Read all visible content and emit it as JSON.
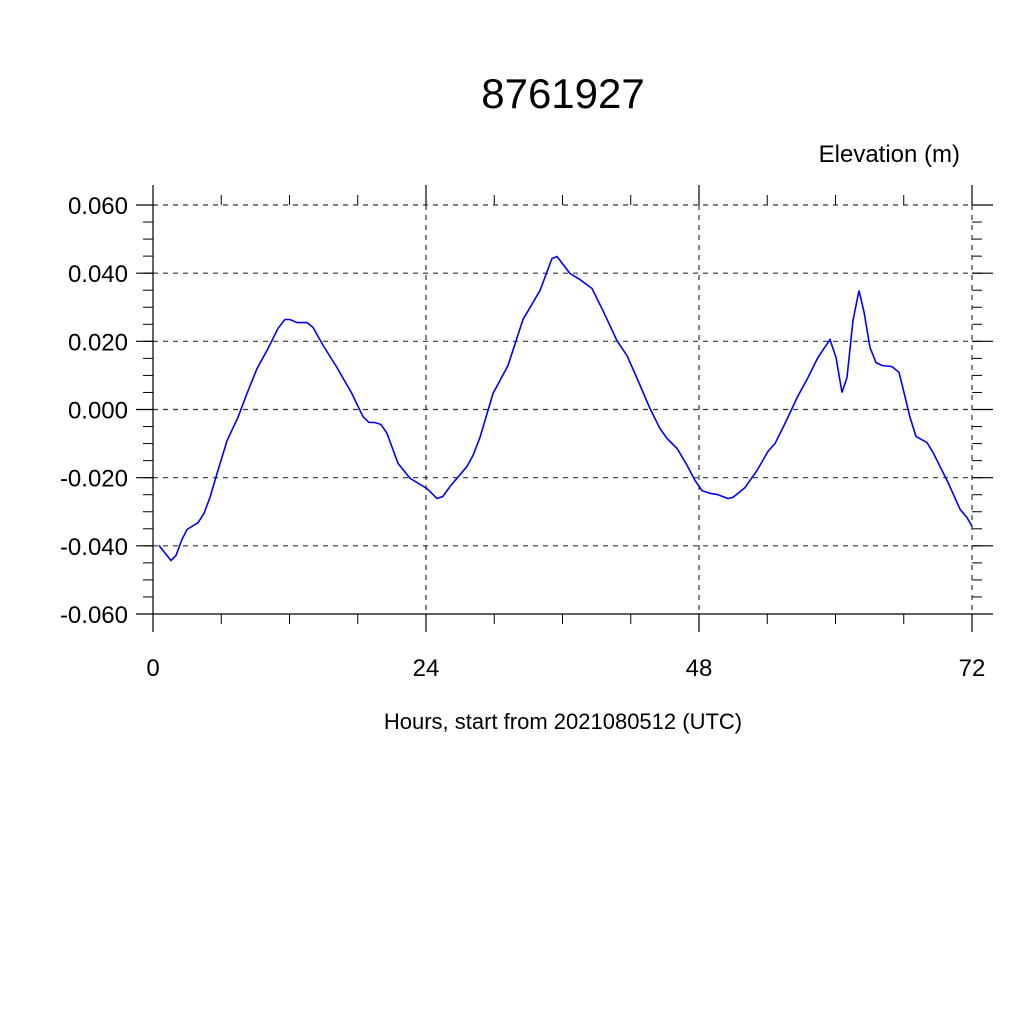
{
  "chart_data": {
    "type": "line",
    "title": "8761927",
    "subtitle": "Elevation (m)",
    "xlabel": "Hours, start from 2021080512 (UTC)",
    "ylabel": "",
    "xlim": [
      0,
      72
    ],
    "ylim": [
      -0.06,
      0.06
    ],
    "x_ticks": [
      0,
      24,
      48,
      72
    ],
    "x_tick_labels": [
      "0",
      "24",
      "48",
      "72"
    ],
    "x_minor_step": 6,
    "y_ticks": [
      0.06,
      0.04,
      0.02,
      0.0,
      -0.02,
      -0.04,
      -0.06
    ],
    "y_tick_labels": [
      "0.060",
      "0.040",
      "0.020",
      "0.000",
      "-0.020",
      "-0.040",
      "-0.060"
    ],
    "y_minor_step": 0.005,
    "grid": true,
    "line_color": "#0000ff",
    "series": [
      {
        "x": [
          0.53,
          1.58,
          2.02,
          2.55,
          2.99,
          3.96,
          4.48,
          5.01,
          5.63,
          6.51,
          7.47,
          8.26,
          9.14,
          10.11,
          10.99,
          11.6,
          12.04,
          12.66,
          13.54,
          14.07,
          14.95,
          16.18,
          17.49,
          18.46,
          18.99,
          19.52,
          20.04,
          20.57,
          21.54,
          22.59,
          24.09,
          24.97,
          25.49,
          26.11,
          27.6,
          28.13,
          28.75,
          29.89,
          31.21,
          32.53,
          34.02,
          35.08,
          35.52,
          36.66,
          37.54,
          38.59,
          39.56,
          40.79,
          41.67,
          42.64,
          43.69,
          44.57,
          45.19,
          46.07,
          46.95,
          47.65,
          48.26,
          48.97,
          49.58,
          50.55,
          50.99,
          52.04,
          53.1,
          54.07,
          54.68,
          55.56,
          56.62,
          57.58,
          58.46,
          59.52,
          60.04,
          60.57,
          61.01,
          61.54,
          62.07,
          62.51,
          63.03,
          63.56,
          64.09,
          64.97,
          65.58,
          66.02,
          66.55,
          67.08,
          68.04,
          68.57,
          69.89,
          70.95,
          71.56,
          72.0
        ],
        "y": [
          -0.0399,
          -0.0443,
          -0.0428,
          -0.0381,
          -0.0352,
          -0.0332,
          -0.0305,
          -0.0258,
          -0.0188,
          -0.0091,
          -0.0023,
          0.0047,
          0.012,
          0.0179,
          0.0238,
          0.0264,
          0.0264,
          0.0255,
          0.0255,
          0.0241,
          0.0188,
          0.0123,
          0.0047,
          -0.0021,
          -0.0038,
          -0.0038,
          -0.0044,
          -0.007,
          -0.0158,
          -0.0202,
          -0.0232,
          -0.0261,
          -0.0255,
          -0.0226,
          -0.0167,
          -0.0135,
          -0.0082,
          0.0047,
          0.0129,
          0.0264,
          0.0349,
          0.0443,
          0.0449,
          0.0399,
          0.0381,
          0.0355,
          0.029,
          0.0202,
          0.0158,
          0.0085,
          0.0003,
          -0.0056,
          -0.0085,
          -0.0114,
          -0.0164,
          -0.0208,
          -0.0238,
          -0.0246,
          -0.0249,
          -0.0261,
          -0.0258,
          -0.0229,
          -0.0179,
          -0.0123,
          -0.01,
          -0.0041,
          0.0035,
          0.0094,
          0.0153,
          0.0205,
          0.0153,
          0.005,
          0.0094,
          0.0261,
          0.0349,
          0.0285,
          0.0182,
          0.0138,
          0.0129,
          0.0126,
          0.0109,
          0.005,
          -0.0023,
          -0.0079,
          -0.0097,
          -0.0126,
          -0.0214,
          -0.0293,
          -0.0317,
          -0.0343
        ]
      }
    ]
  }
}
